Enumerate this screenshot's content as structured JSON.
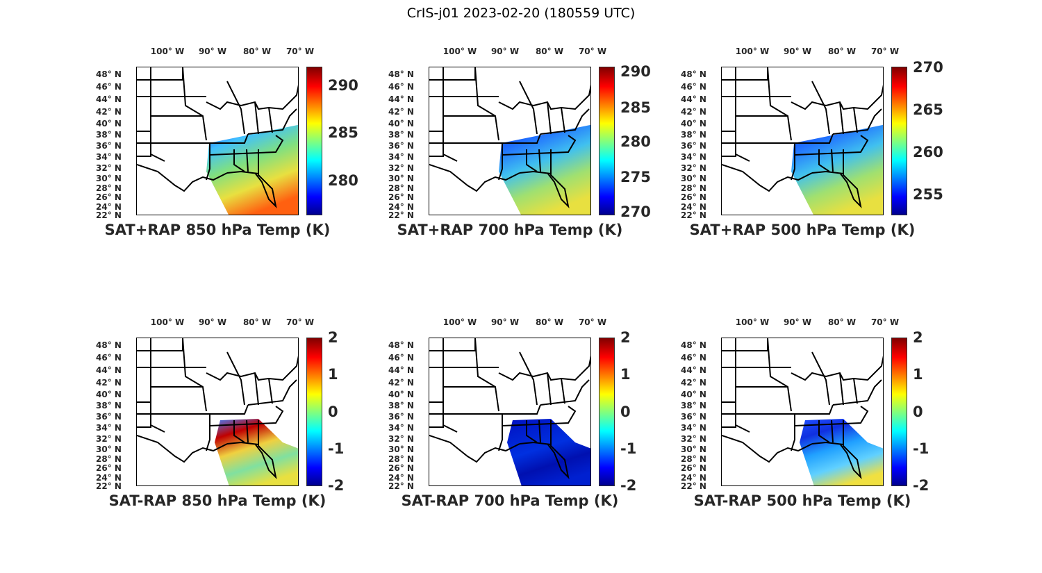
{
  "figure_title": "CrIS-j01 2023-02-20 (180559 UTC)",
  "colormap": "jet",
  "lon_labels": [
    "100° W",
    "90° W",
    "80° W",
    "70° W"
  ],
  "lat_labels": [
    "48° N",
    "46° N",
    "44° N",
    "42° N",
    "40° N",
    "38° N",
    "36° N",
    "34° N",
    "32° N",
    "30° N",
    "28° N",
    "26° N",
    "24° N",
    "22° N"
  ],
  "panels": [
    {
      "title": "SAT+RAP 850 hPa Temp (K)",
      "clim": [
        276.4,
        292
      ],
      "ticks": [
        "290",
        "285",
        "280"
      ],
      "swath": "full",
      "palette": [
        "#1030ff",
        "#40c0ff",
        "#80e080",
        "#e8e040",
        "#ff6010"
      ]
    },
    {
      "title": "SAT+RAP 700 hPa Temp (K)",
      "clim": [
        269.5,
        290.7
      ],
      "ticks": [
        "290",
        "285",
        "280",
        "275",
        "270"
      ],
      "swath": "full",
      "palette": [
        "#1030e0",
        "#2070ff",
        "#40c0f0",
        "#a0e070",
        "#e8e040"
      ]
    },
    {
      "title": "SAT+RAP 500 hPa Temp (K)",
      "clim": [
        252.5,
        270
      ],
      "ticks": [
        "270",
        "265",
        "260",
        "255"
      ],
      "swath": "full",
      "palette": [
        "#1030e0",
        "#2070ff",
        "#40c0f0",
        "#a0e070",
        "#e8e040"
      ]
    },
    {
      "title": "SAT-RAP 850 hPa Temp (K)",
      "clim": [
        -2,
        2
      ],
      "ticks": [
        "2",
        "1",
        "0",
        "-1",
        "-2"
      ],
      "swath": "south",
      "palette": [
        "#4080ff",
        "#c00000",
        "#f0d040",
        "#80e0a0",
        "#e8e040"
      ]
    },
    {
      "title": "SAT-RAP 700 hPa Temp (K)",
      "clim": [
        -2,
        2
      ],
      "ticks": [
        "2",
        "1",
        "0",
        "-1",
        "-2"
      ],
      "swath": "south",
      "palette": [
        "#0010c0",
        "#0020d0",
        "#0030e0",
        "#0010b0",
        "#0020d0"
      ]
    },
    {
      "title": "SAT-RAP 500 hPa Temp (K)",
      "clim": [
        -2,
        2
      ],
      "ticks": [
        "2",
        "1",
        "0",
        "-1",
        "-2"
      ],
      "swath": "south",
      "palette": [
        "#2050ff",
        "#1030e0",
        "#20a0ff",
        "#60d0ff",
        "#f0e040"
      ]
    }
  ]
}
